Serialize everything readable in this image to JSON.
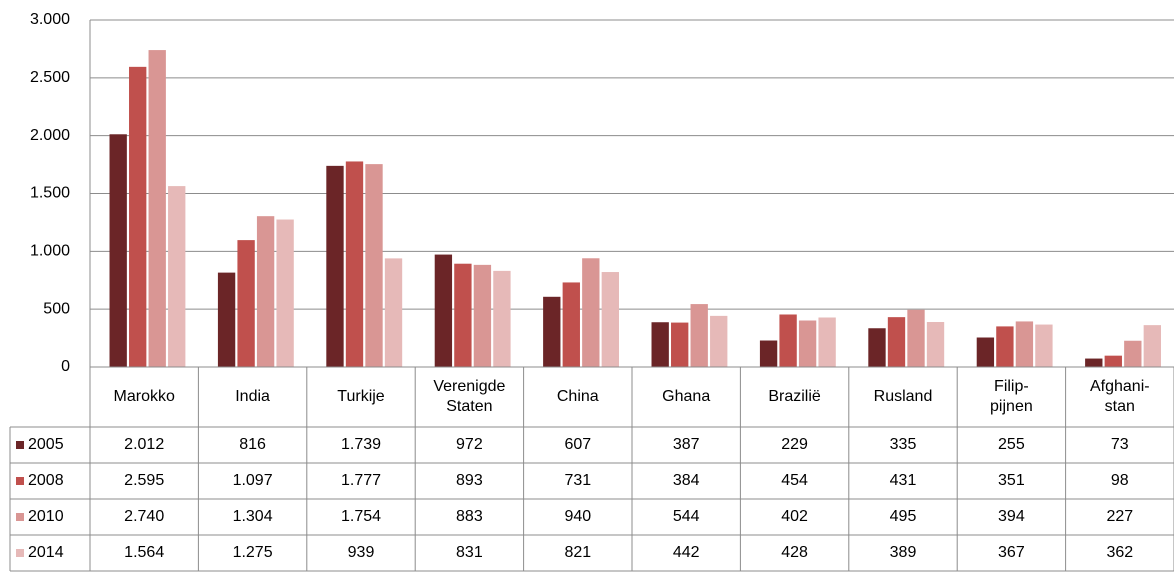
{
  "chart_data": {
    "type": "bar",
    "categories": [
      "Marokko",
      "India",
      "Turkije",
      "Verenigde\nStaten",
      "China",
      "Ghana",
      "Brazilië",
      "Rusland",
      "Filip-\npijnen",
      "Afghani-\nstan"
    ],
    "series": [
      {
        "name": "2005",
        "color": "#6b2527",
        "values": [
          2012,
          816,
          1739,
          972,
          607,
          387,
          229,
          335,
          255,
          73
        ],
        "value_labels": [
          "2.012",
          "816",
          "1.739",
          "972",
          "607",
          "387",
          "229",
          "335",
          "255",
          "73"
        ]
      },
      {
        "name": "2008",
        "color": "#c0504d",
        "values": [
          2595,
          1097,
          1777,
          893,
          731,
          384,
          454,
          431,
          351,
          98
        ],
        "value_labels": [
          "2.595",
          "1.097",
          "1.777",
          "893",
          "731",
          "384",
          "454",
          "431",
          "351",
          "98"
        ]
      },
      {
        "name": "2010",
        "color": "#d99694",
        "values": [
          2740,
          1304,
          1754,
          883,
          940,
          544,
          402,
          495,
          394,
          227
        ],
        "value_labels": [
          "2.740",
          "1.304",
          "1.754",
          "883",
          "940",
          "544",
          "402",
          "495",
          "394",
          "227"
        ]
      },
      {
        "name": "2014",
        "color": "#e6b9b8",
        "values": [
          1564,
          1275,
          939,
          831,
          821,
          442,
          428,
          389,
          367,
          362
        ],
        "value_labels": [
          "1.564",
          "1.275",
          "939",
          "831",
          "821",
          "442",
          "428",
          "389",
          "367",
          "362"
        ]
      }
    ],
    "ylim": [
      0,
      3000
    ],
    "yticks": [
      0,
      500,
      {
        "value": 1000,
        "label": "1.000"
      },
      {
        "value": 1500,
        "label": "1.500"
      },
      {
        "value": 2000,
        "label": "2.000"
      },
      {
        "value": 2500,
        "label": "2.500"
      },
      {
        "value": 3000,
        "label": "3.000"
      }
    ],
    "grid": true
  }
}
